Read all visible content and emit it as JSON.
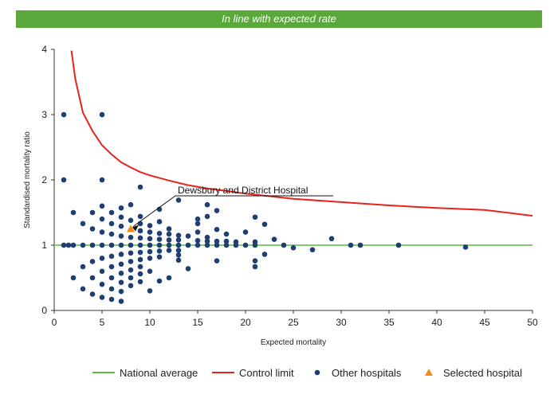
{
  "header": {
    "banner": "In line with expected rate"
  },
  "colors": {
    "banner_bg": "#5aa83c",
    "national": "#5ab947",
    "control": "#e8221d",
    "other": "#1f3f72",
    "selected": "#f08a1d"
  },
  "chart_data": {
    "type": "scatter",
    "title": "In line with expected rate",
    "xlabel": "Expected mortality",
    "ylabel": "Standardised mortality ratio",
    "xlim": [
      0,
      50
    ],
    "ylim": [
      0,
      4
    ],
    "xticks": [
      0,
      5,
      10,
      15,
      20,
      25,
      30,
      35,
      40,
      45,
      50
    ],
    "yticks": [
      0,
      1,
      2,
      3,
      4
    ],
    "grid": false,
    "legend_position": "bottom",
    "legend": [
      "National average",
      "Control limit",
      "Other hospitals",
      "Selected hospital"
    ],
    "national_average": 1,
    "control_limit": {
      "x": [
        1.8,
        2.2,
        3,
        4,
        5,
        6,
        7,
        8,
        9,
        10,
        12,
        14,
        16,
        18,
        20,
        25,
        30,
        35,
        40,
        45,
        50
      ],
      "y": [
        3.98,
        3.55,
        3.03,
        2.75,
        2.53,
        2.39,
        2.27,
        2.19,
        2.12,
        2.07,
        1.99,
        1.92,
        1.87,
        1.83,
        1.79,
        1.71,
        1.66,
        1.61,
        1.57,
        1.54,
        1.45
      ]
    },
    "other_hospitals": [
      [
        1,
        3
      ],
      [
        5,
        3
      ],
      [
        1,
        2
      ],
      [
        5,
        2
      ],
      [
        1,
        1
      ],
      [
        1.5,
        1
      ],
      [
        2,
        1
      ],
      [
        3,
        1
      ],
      [
        4,
        1
      ],
      [
        5,
        1
      ],
      [
        6,
        1
      ],
      [
        7,
        1
      ],
      [
        8,
        1
      ],
      [
        9,
        1
      ],
      [
        10,
        1
      ],
      [
        11,
        1
      ],
      [
        12,
        1
      ],
      [
        13,
        1
      ],
      [
        14,
        1
      ],
      [
        15,
        1
      ],
      [
        16,
        1
      ],
      [
        17,
        1
      ],
      [
        18,
        1
      ],
      [
        19,
        1
      ],
      [
        20,
        1
      ],
      [
        21,
        1
      ],
      [
        2,
        0.5
      ],
      [
        3,
        0.33
      ],
      [
        3,
        0.67
      ],
      [
        4,
        0.75
      ],
      [
        4,
        0.5
      ],
      [
        4,
        0.25
      ],
      [
        5,
        0.8
      ],
      [
        5,
        0.6
      ],
      [
        5,
        0.4
      ],
      [
        5,
        0.2
      ],
      [
        6,
        0.83
      ],
      [
        6,
        0.67
      ],
      [
        6,
        0.5
      ],
      [
        6,
        0.33
      ],
      [
        6,
        0.17
      ],
      [
        7,
        0.86
      ],
      [
        7,
        0.71
      ],
      [
        7,
        0.57
      ],
      [
        7,
        0.43
      ],
      [
        7,
        0.29
      ],
      [
        7,
        0.14
      ],
      [
        8,
        0.88
      ],
      [
        8,
        0.75
      ],
      [
        8,
        0.62
      ],
      [
        8,
        0.5
      ],
      [
        8,
        0.38
      ],
      [
        9,
        0.89
      ],
      [
        9,
        0.78
      ],
      [
        9,
        0.67
      ],
      [
        9,
        0.56
      ],
      [
        9,
        0.44
      ],
      [
        10,
        0.9
      ],
      [
        10,
        0.8
      ],
      [
        10,
        0.6
      ],
      [
        10,
        0.3
      ],
      [
        11,
        0.91
      ],
      [
        11,
        0.82
      ],
      [
        11,
        0.45
      ],
      [
        12,
        0.92
      ],
      [
        12,
        0.5
      ],
      [
        13,
        0.92
      ],
      [
        13,
        0.85
      ],
      [
        13,
        0.77
      ],
      [
        14,
        0.64
      ],
      [
        2,
        1.5
      ],
      [
        3,
        1.33
      ],
      [
        4,
        1.5
      ],
      [
        4,
        1.25
      ],
      [
        5,
        1.6
      ],
      [
        5,
        1.4
      ],
      [
        5,
        1.2
      ],
      [
        6,
        1.5
      ],
      [
        6,
        1.33
      ],
      [
        6,
        1.17
      ],
      [
        7,
        1.57
      ],
      [
        7,
        1.43
      ],
      [
        7,
        1.29
      ],
      [
        7,
        1.14
      ],
      [
        8,
        1.62
      ],
      [
        8,
        1.38
      ],
      [
        8,
        1.12
      ],
      [
        9,
        1.89
      ],
      [
        9,
        1.44
      ],
      [
        9,
        1.33
      ],
      [
        9,
        1.22
      ],
      [
        9,
        1.11
      ],
      [
        10,
        1.3
      ],
      [
        10,
        1.2
      ],
      [
        10,
        1.1
      ],
      [
        11,
        1.55
      ],
      [
        11,
        1.36
      ],
      [
        11,
        1.18
      ],
      [
        11,
        1.09
      ],
      [
        12,
        1.25
      ],
      [
        12,
        1.17
      ],
      [
        12,
        1.08
      ],
      [
        13,
        1.69
      ],
      [
        13,
        1.15
      ],
      [
        13,
        1.08
      ],
      [
        14,
        1.14
      ],
      [
        15,
        1.4
      ],
      [
        15,
        1.33
      ],
      [
        15,
        1.2
      ],
      [
        15,
        1.07
      ],
      [
        16,
        1.62
      ],
      [
        16,
        1.44
      ],
      [
        16,
        1.12
      ],
      [
        16,
        1.06
      ],
      [
        17,
        1.53
      ],
      [
        17,
        1.24
      ],
      [
        17,
        1.06
      ],
      [
        17,
        0.76
      ],
      [
        18,
        1.17
      ],
      [
        18,
        1.06
      ],
      [
        19,
        1.05
      ],
      [
        20,
        1.2
      ],
      [
        21,
        1.43
      ],
      [
        21,
        1.05
      ],
      [
        21,
        0.76
      ],
      [
        21,
        0.67
      ],
      [
        22,
        1.32
      ],
      [
        22,
        0.86
      ],
      [
        23,
        1.09
      ],
      [
        24,
        1
      ],
      [
        25,
        0.96
      ],
      [
        27,
        0.93
      ],
      [
        29,
        1.1
      ],
      [
        31,
        1
      ],
      [
        32,
        1
      ],
      [
        36,
        1
      ],
      [
        43,
        0.97
      ]
    ],
    "selected_hospital": {
      "name": "Dewsbury and District Hospital",
      "x": 8,
      "y": 1.25
    }
  }
}
